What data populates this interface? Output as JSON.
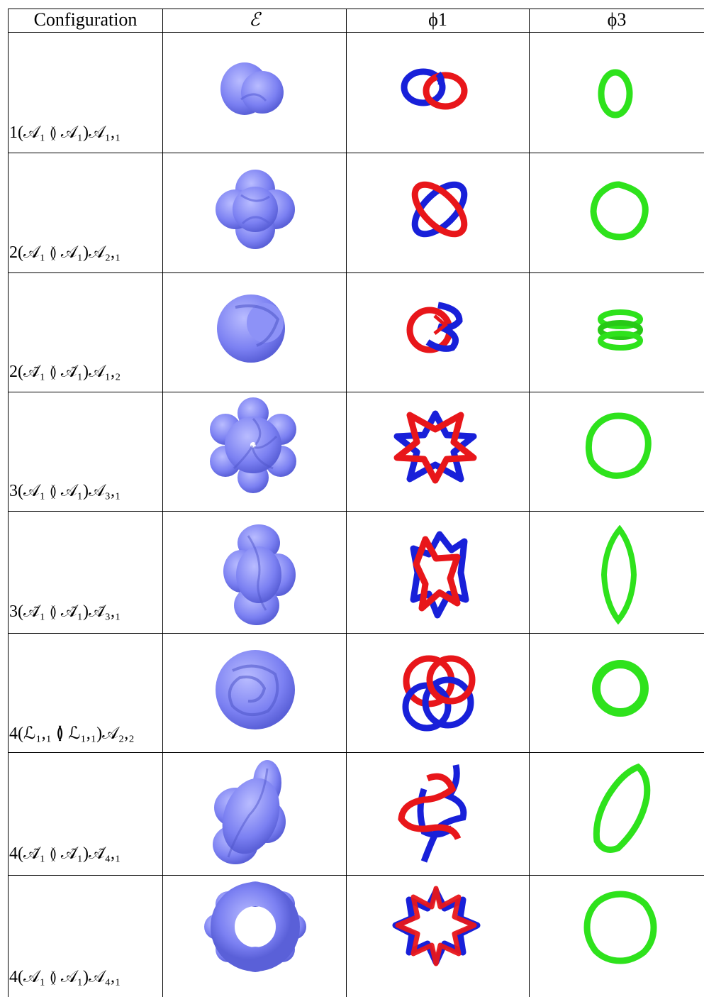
{
  "table": {
    "headers": {
      "configuration": "Configuration",
      "energy": "ℰ",
      "phi1": "ϕ1",
      "phi3": "ϕ3"
    },
    "rows": [
      {
        "label": "1(𝒜₁ ≬ 𝒜₁)𝒜₁,₁",
        "energy_shape": "two-lobe",
        "phi1_shape": "hopf-link",
        "phi3_shape": "small-ring"
      },
      {
        "label": "2(𝒜₁ ≬ 𝒜₁)𝒜₂,₁",
        "energy_shape": "four-lobe",
        "phi1_shape": "crossed-ellipses",
        "phi3_shape": "wavy-ring"
      },
      {
        "label": "2(𝒜̃₁ ≬ 𝒜̃₁)𝒜₁,₂",
        "energy_shape": "twisted-lobe",
        "phi1_shape": "tangled-loops",
        "phi3_shape": "stacked-ring"
      },
      {
        "label": "3(𝒜₁ ≬ 𝒜₁)𝒜₃,₁",
        "energy_shape": "six-lobe-torus",
        "phi1_shape": "six-crossing-star",
        "phi3_shape": "large-ring"
      },
      {
        "label": "3(𝒜̃₁ ≬ 𝒜̃₁)𝒜̃₃,₁",
        "energy_shape": "elongated-torus",
        "phi1_shape": "elongated-star",
        "phi3_shape": "vertical-ellipse"
      },
      {
        "label": "4(ℒ₁,₁ ≬ ℒ₁,₁)𝒜₂,₂",
        "energy_shape": "knotted-torus",
        "phi1_shape": "interlinked-rings",
        "phi3_shape": "thick-ring"
      },
      {
        "label": "4(𝒜̃₁ ≬ 𝒜̃₁)𝒜̃₄,₁",
        "energy_shape": "tilted-twisted",
        "phi1_shape": "tilted-knot",
        "phi3_shape": "tilted-ellipse"
      },
      {
        "label": "4(𝒜₁ ≬ 𝒜₁)𝒜₄,₁",
        "energy_shape": "eight-lobe-torus",
        "phi1_shape": "eight-crossing-star",
        "phi3_shape": "ring"
      }
    ]
  },
  "colors": {
    "energy": "#7b80f2",
    "energy_shade": "#4f55c9",
    "red_loop": "#e8161a",
    "blue_loop": "#1820d9",
    "green_ring": "#2ee21c"
  }
}
